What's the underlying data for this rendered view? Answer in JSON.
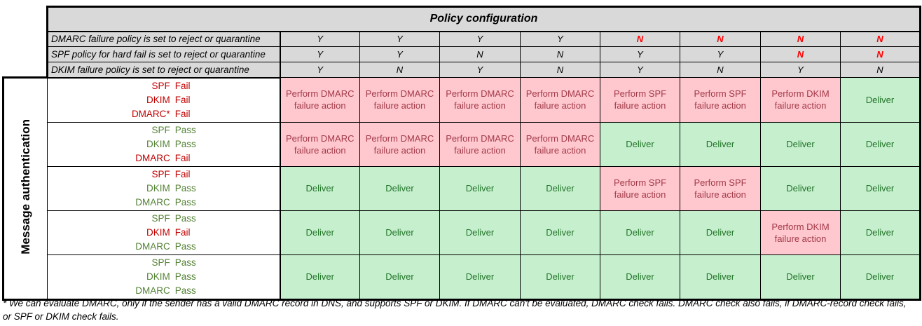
{
  "title": "Policy configuration",
  "side_label": "Message authentication",
  "policy_rows": [
    {
      "label": "DMARC failure policy is set to reject or quarantine",
      "values": [
        "Y",
        "Y",
        "Y",
        "Y",
        "N",
        "N",
        "N",
        "N"
      ],
      "red": [
        false,
        false,
        false,
        false,
        true,
        true,
        true,
        true
      ]
    },
    {
      "label": "SPF policy for hard fail is set to reject or quarantine",
      "values": [
        "Y",
        "Y",
        "N",
        "N",
        "Y",
        "Y",
        "N",
        "N"
      ],
      "red": [
        false,
        false,
        false,
        false,
        false,
        false,
        true,
        true
      ]
    },
    {
      "label": "DKIM failure policy is set to reject or quarantine",
      "values": [
        "Y",
        "N",
        "Y",
        "N",
        "Y",
        "N",
        "Y",
        "N"
      ],
      "red": [
        false,
        false,
        false,
        false,
        false,
        false,
        false,
        false
      ]
    }
  ],
  "auth_rows": [
    {
      "states": [
        {
          "protocol": "SPF",
          "status": "Fail"
        },
        {
          "protocol": "DKIM",
          "status": "Fail"
        },
        {
          "protocol": "DMARC*",
          "status": "Fail"
        }
      ],
      "outcomes": [
        {
          "text": "Perform DMARC failure action",
          "kind": "fail"
        },
        {
          "text": "Perform DMARC failure action",
          "kind": "fail"
        },
        {
          "text": "Perform DMARC failure action",
          "kind": "fail"
        },
        {
          "text": "Perform DMARC failure action",
          "kind": "fail"
        },
        {
          "text": "Perform SPF failure action",
          "kind": "fail"
        },
        {
          "text": "Perform SPF failure action",
          "kind": "fail"
        },
        {
          "text": "Perform DKIM failure action",
          "kind": "fail"
        },
        {
          "text": "Deliver",
          "kind": "ok"
        }
      ]
    },
    {
      "states": [
        {
          "protocol": "SPF",
          "status": "Pass"
        },
        {
          "protocol": "DKIM",
          "status": "Pass"
        },
        {
          "protocol": "DMARC",
          "status": "Fail"
        }
      ],
      "outcomes": [
        {
          "text": "Perform DMARC failure action",
          "kind": "fail"
        },
        {
          "text": "Perform DMARC failure action",
          "kind": "fail"
        },
        {
          "text": "Perform DMARC failure action",
          "kind": "fail"
        },
        {
          "text": "Perform DMARC failure action",
          "kind": "fail"
        },
        {
          "text": "Deliver",
          "kind": "ok"
        },
        {
          "text": "Deliver",
          "kind": "ok"
        },
        {
          "text": "Deliver",
          "kind": "ok"
        },
        {
          "text": "Deliver",
          "kind": "ok"
        }
      ]
    },
    {
      "states": [
        {
          "protocol": "SPF",
          "status": "Fail"
        },
        {
          "protocol": "DKIM",
          "status": "Pass"
        },
        {
          "protocol": "DMARC",
          "status": "Pass"
        }
      ],
      "outcomes": [
        {
          "text": "Deliver",
          "kind": "ok"
        },
        {
          "text": "Deliver",
          "kind": "ok"
        },
        {
          "text": "Deliver",
          "kind": "ok"
        },
        {
          "text": "Deliver",
          "kind": "ok"
        },
        {
          "text": "Perform SPF failure action",
          "kind": "fail"
        },
        {
          "text": "Perform SPF failure action",
          "kind": "fail"
        },
        {
          "text": "Deliver",
          "kind": "ok"
        },
        {
          "text": "Deliver",
          "kind": "ok"
        }
      ]
    },
    {
      "states": [
        {
          "protocol": "SPF",
          "status": "Pass"
        },
        {
          "protocol": "DKIM",
          "status": "Fail"
        },
        {
          "protocol": "DMARC",
          "status": "Pass"
        }
      ],
      "outcomes": [
        {
          "text": "Deliver",
          "kind": "ok"
        },
        {
          "text": "Deliver",
          "kind": "ok"
        },
        {
          "text": "Deliver",
          "kind": "ok"
        },
        {
          "text": "Deliver",
          "kind": "ok"
        },
        {
          "text": "Deliver",
          "kind": "ok"
        },
        {
          "text": "Deliver",
          "kind": "ok"
        },
        {
          "text": "Perform DKIM failure action",
          "kind": "fail"
        },
        {
          "text": "Deliver",
          "kind": "ok"
        }
      ]
    },
    {
      "states": [
        {
          "protocol": "SPF",
          "status": "Pass"
        },
        {
          "protocol": "DKIM",
          "status": "Pass"
        },
        {
          "protocol": "DMARC",
          "status": "Pass"
        }
      ],
      "outcomes": [
        {
          "text": "Deliver",
          "kind": "ok"
        },
        {
          "text": "Deliver",
          "kind": "ok"
        },
        {
          "text": "Deliver",
          "kind": "ok"
        },
        {
          "text": "Deliver",
          "kind": "ok"
        },
        {
          "text": "Deliver",
          "kind": "ok"
        },
        {
          "text": "Deliver",
          "kind": "ok"
        },
        {
          "text": "Deliver",
          "kind": "ok"
        },
        {
          "text": "Deliver",
          "kind": "ok"
        }
      ]
    }
  ],
  "footnote_lines": [
    "* We can evaluate DMARC, only if the sender has a valid DMARC record in DNS, and supports SPF or DKIM. If DMARC can't be evaluated, DMARC check fails. DMARC check also fails, if DMARC-record check fails,",
    "or SPF or DKIM check fails."
  ],
  "colors": {
    "cell_gray": "#d9d9d9",
    "fail_fill": "#ffc7ce",
    "fail_text": "#a23b49",
    "ok_fill": "#c6efce",
    "ok_text": "#217528",
    "state_fail_text": "#c00000",
    "state_pass_text": "#548235",
    "policy_no_red": "#ff0000",
    "border_black": "#000000"
  }
}
